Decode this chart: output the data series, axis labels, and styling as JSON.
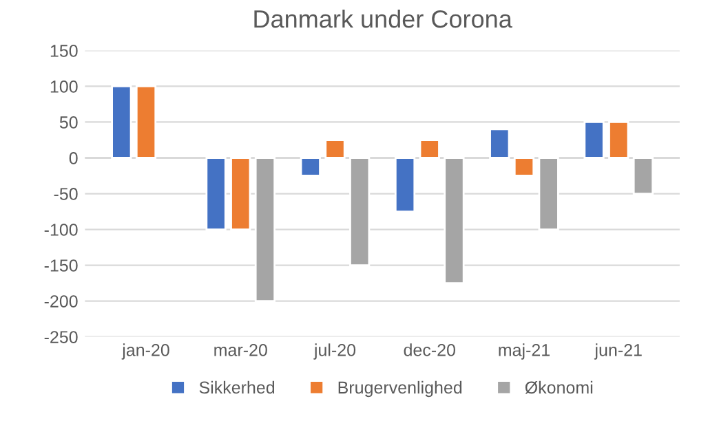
{
  "chart_data": {
    "type": "bar",
    "title": "Danmark under Corona",
    "categories": [
      "jan-20",
      "mar-20",
      "jul-20",
      "dec-20",
      "maj-21",
      "jun-21"
    ],
    "series": [
      {
        "name": "Sikkerhed",
        "color": "#4472c4",
        "values": [
          100,
          -100,
          -25,
          -75,
          40,
          50
        ]
      },
      {
        "name": "Brugervenlighed",
        "color": "#ed7d31",
        "values": [
          100,
          -100,
          25,
          25,
          -25,
          50
        ]
      },
      {
        "name": "Økonomi",
        "color": "#a5a5a5",
        "values": [
          null,
          -200,
          -150,
          -175,
          -100,
          -50
        ]
      }
    ],
    "ylim": [
      -250,
      150
    ],
    "yticks": [
      -250,
      -200,
      -150,
      -100,
      -50,
      0,
      50,
      100,
      150
    ],
    "grid": "y",
    "legend": "bottom"
  }
}
